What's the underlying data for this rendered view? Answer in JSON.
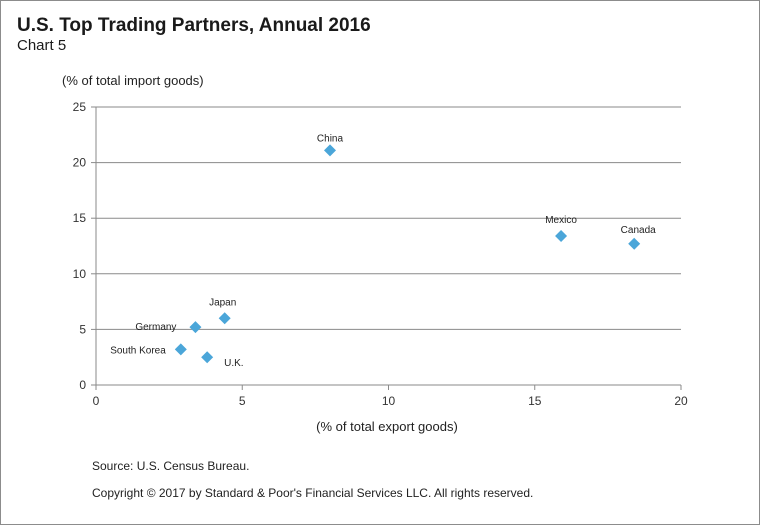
{
  "header": {
    "title": "U.S. Top Trading Partners, Annual 2016",
    "subtitle": "Chart 5"
  },
  "footer": {
    "source": "Source: U.S. Census Bureau.",
    "copyright": "Copyright © 2017 by Standard & Poor's Financial Services LLC. All rights reserved."
  },
  "chart_data": {
    "type": "scatter",
    "title": "U.S. Top Trading Partners, Annual 2016",
    "subtitle": "Chart 5",
    "xlabel": "(% of total export goods)",
    "ylabel": "(% of total import goods)",
    "xlim": [
      0,
      20
    ],
    "ylim": [
      0,
      25
    ],
    "xticks": [
      0,
      5,
      10,
      15,
      20
    ],
    "yticks": [
      0,
      5,
      10,
      15,
      20,
      25
    ],
    "grid": "horizontal",
    "marker": "diamond",
    "marker_color": "#4ba6d9",
    "points": [
      {
        "label": "China",
        "x": 8.0,
        "y": 21.1
      },
      {
        "label": "Mexico",
        "x": 15.9,
        "y": 13.4
      },
      {
        "label": "Canada",
        "x": 18.4,
        "y": 12.7
      },
      {
        "label": "Japan",
        "x": 4.4,
        "y": 6.0
      },
      {
        "label": "Germany",
        "x": 3.4,
        "y": 5.2
      },
      {
        "label": "South Korea",
        "x": 2.9,
        "y": 3.2
      },
      {
        "label": "U.K.",
        "x": 3.8,
        "y": 2.5
      }
    ]
  }
}
